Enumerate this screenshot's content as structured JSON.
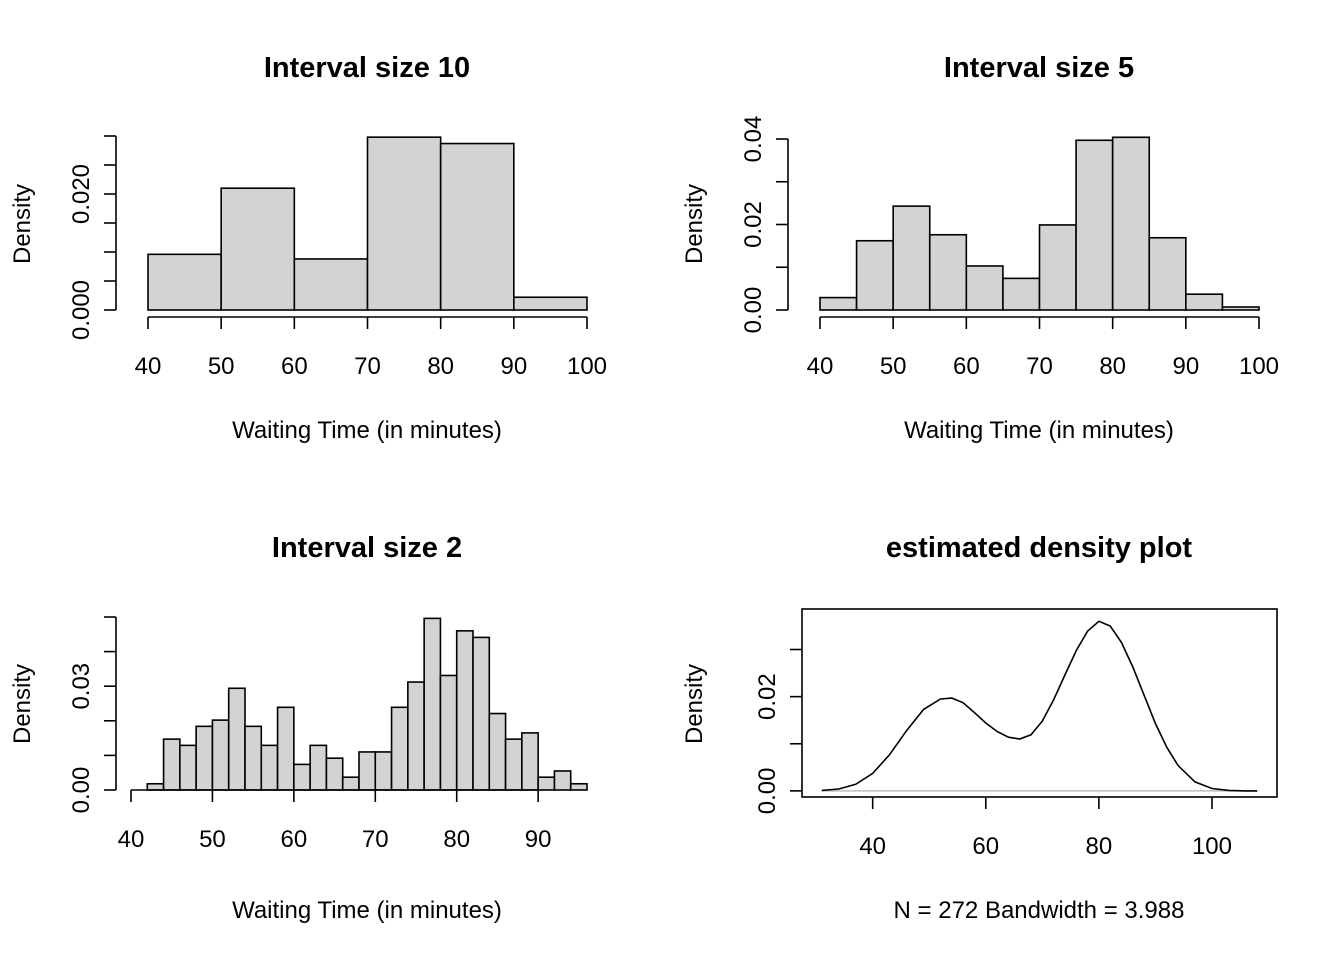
{
  "chart_data": [
    {
      "type": "bar",
      "title": "Interval size 10",
      "xlabel": "Waiting Time (in minutes)",
      "ylabel": "Density",
      "bin_edges": [
        40,
        50,
        60,
        70,
        80,
        90,
        100
      ],
      "values": [
        0.0096,
        0.021,
        0.0088,
        0.0298,
        0.0287,
        0.0022
      ],
      "xlim": [
        40,
        100
      ],
      "ylim": [
        0,
        0.03
      ],
      "xticks": [
        "40",
        "50",
        "60",
        "70",
        "80",
        "90",
        "100"
      ],
      "yticks": [
        0,
        0.005,
        0.01,
        0.015,
        0.02,
        0.025,
        0.03
      ],
      "ytick_labels": [
        "0.000",
        "",
        "",
        "",
        "0.020",
        "",
        ""
      ]
    },
    {
      "type": "bar",
      "title": "Interval size 5",
      "xlabel": "Waiting Time (in minutes)",
      "ylabel": "Density",
      "bin_edges": [
        40,
        45,
        50,
        55,
        60,
        65,
        70,
        75,
        80,
        85,
        90,
        95,
        100
      ],
      "values": [
        0.0029,
        0.0162,
        0.0243,
        0.0176,
        0.0103,
        0.0074,
        0.0199,
        0.0397,
        0.0404,
        0.0169,
        0.0037,
        0.0007
      ],
      "xlim": [
        40,
        100
      ],
      "ylim": [
        0,
        0.04
      ],
      "xticks": [
        "40",
        "50",
        "60",
        "70",
        "80",
        "90",
        "100"
      ],
      "yticks": [
        0,
        0.01,
        0.02,
        0.03,
        0.04
      ],
      "ytick_labels": [
        "0.00",
        "",
        "0.02",
        "",
        "0.04"
      ]
    },
    {
      "type": "bar",
      "title": "Interval size 2",
      "xlabel": "Waiting Time (in minutes)",
      "ylabel": "Density",
      "bin_edges": [
        42,
        44,
        46,
        48,
        50,
        52,
        54,
        56,
        58,
        60,
        62,
        64,
        66,
        68,
        70,
        72,
        74,
        76,
        78,
        80,
        82,
        84,
        86,
        88,
        90,
        92,
        94,
        96
      ],
      "values": [
        0.0018,
        0.0147,
        0.0129,
        0.0184,
        0.0202,
        0.0294,
        0.0184,
        0.0129,
        0.0239,
        0.0074,
        0.0129,
        0.0092,
        0.0037,
        0.011,
        0.011,
        0.0239,
        0.0312,
        0.0496,
        0.0331,
        0.046,
        0.0441,
        0.0221,
        0.0147,
        0.0165,
        0.0037,
        0.0055,
        0.0018
      ],
      "xlim": [
        40,
        96
      ],
      "ylim": [
        0,
        0.05
      ],
      "xticks": [
        "40",
        "50",
        "60",
        "70",
        "80",
        "90"
      ],
      "yticks": [
        0,
        0.01,
        0.02,
        0.03,
        0.04,
        0.05
      ],
      "ytick_labels": [
        "0.00",
        "",
        "",
        "0.03",
        "",
        ""
      ]
    },
    {
      "type": "line",
      "title": "estimated density plot",
      "xlabel": "N = 272   Bandwidth = 3.988",
      "ylabel": "Density",
      "x": [
        31,
        34,
        37,
        40,
        43,
        46,
        49,
        52,
        54,
        56,
        58,
        60,
        62,
        64,
        66,
        68,
        70,
        72,
        74,
        76,
        78,
        80,
        82,
        84,
        86,
        88,
        90,
        92,
        94,
        97,
        100,
        103,
        106,
        108
      ],
      "y": [
        0.0001,
        0.0004,
        0.0014,
        0.0037,
        0.0077,
        0.0128,
        0.0173,
        0.0195,
        0.0197,
        0.0187,
        0.0166,
        0.0144,
        0.0126,
        0.0114,
        0.011,
        0.0119,
        0.0148,
        0.0193,
        0.0246,
        0.0298,
        0.0339,
        0.036,
        0.035,
        0.0315,
        0.0263,
        0.0203,
        0.0143,
        0.0093,
        0.0054,
        0.0019,
        0.0005,
        0.0001,
        0.0,
        0.0
      ],
      "xlim": [
        27.5,
        111.5
      ],
      "ylim": [
        -0.0013,
        0.0386
      ],
      "xticks": [
        "40",
        "60",
        "80",
        "100"
      ],
      "yticks": [
        0,
        0.01,
        0.02,
        0.03
      ],
      "ytick_labels": [
        "0.00",
        "",
        "0.02",
        ""
      ]
    }
  ]
}
